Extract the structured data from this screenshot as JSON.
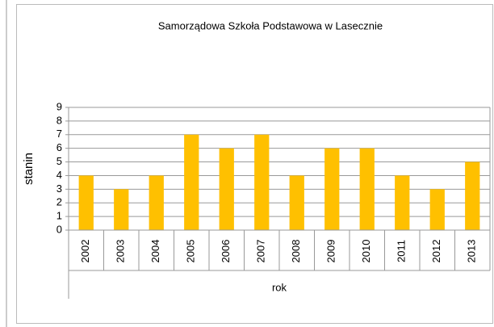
{
  "chart_data": {
    "type": "bar",
    "title": "Samorządowa Szkoła Podstawowa w Lasecznie",
    "y_label": "stanin",
    "x_label": "rok",
    "categories": [
      "2002",
      "2003",
      "2004",
      "2005",
      "2006",
      "2007",
      "2008",
      "2009",
      "2010",
      "2011",
      "2012",
      "2013"
    ],
    "values": [
      4,
      3,
      4,
      7,
      6,
      7,
      4,
      6,
      6,
      4,
      3,
      5
    ],
    "color": "#ffc000",
    "ylim": [
      0,
      9
    ],
    "yticks": [
      0,
      1,
      2,
      3,
      4,
      5,
      6,
      7,
      8,
      9
    ],
    "grid": true
  }
}
